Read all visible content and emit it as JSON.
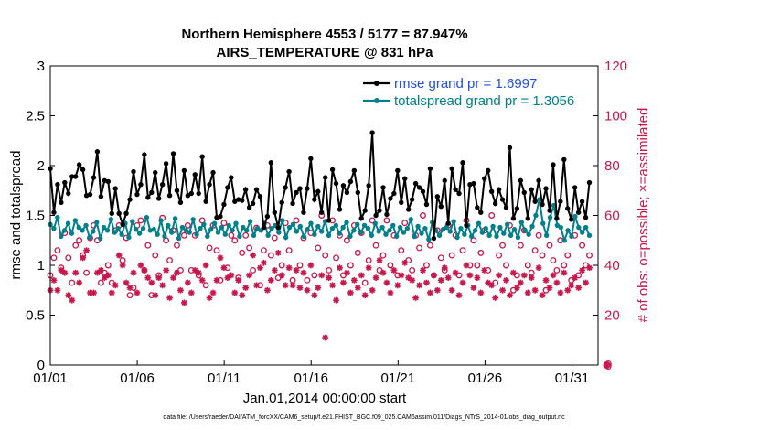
{
  "chart_data": {
    "type": "line",
    "title": "Northern Hemisphere 4553 / 5177 = 87.947%",
    "subtitle": "AIRS_TEMPERATURE @ 831 hPa",
    "xlabel": "Jan.01,2014 00:00:00 start",
    "ylabel": "rmse and totalspread",
    "y2label": "# of obs: o=possible; ×=assimilated",
    "footnote": "data file: /Users/raeder/DAI/ATM_forcXX/CAM6_setup/f.e21.FHIST_BGC.f09_025.CAM6assim.011/Diags_NTrS_2014-01/obs_diag_output.nc",
    "xlim": [
      0,
      31.5
    ],
    "ylim": [
      0,
      3
    ],
    "y2lim": [
      0,
      120
    ],
    "x_ticks": [
      0,
      5,
      10,
      15,
      20,
      25,
      30
    ],
    "x_tick_labels": [
      "01/01",
      "01/06",
      "01/11",
      "01/16",
      "01/21",
      "01/26",
      "01/31"
    ],
    "y_ticks": [
      0,
      0.5,
      1,
      1.5,
      2,
      2.5,
      3
    ],
    "y_tick_labels": [
      "0",
      "0.5",
      "1",
      "1.5",
      "2",
      "2.5",
      "3"
    ],
    "y2_ticks": [
      0,
      20,
      40,
      60,
      80,
      100,
      120
    ],
    "y2_tick_labels": [
      "0",
      "20",
      "40",
      "60",
      "80",
      "100",
      "120"
    ],
    "grid": false,
    "legend_position": "top-right",
    "colors": {
      "rmse": "#000000",
      "spread": "#00808a",
      "obs": "#c8174b"
    },
    "series": [
      {
        "name": "rmse grand pr = 1.6997",
        "axis": "left",
        "marker": "filled-circle",
        "values": [
          1.97,
          1.53,
          1.81,
          1.63,
          1.83,
          1.72,
          1.89,
          1.89,
          2.01,
          1.96,
          1.7,
          1.71,
          1.88,
          2.14,
          1.69,
          1.85,
          1.84,
          1.52,
          1.77,
          1.52,
          1.41,
          1.52,
          1.66,
          1.94,
          1.71,
          1.81,
          2.11,
          1.68,
          1.73,
          1.93,
          1.67,
          1.81,
          2.02,
          1.7,
          2.12,
          1.75,
          1.63,
          1.95,
          1.7,
          1.72,
          1.91,
          1.72,
          2.09,
          1.64,
          1.81,
          1.93,
          1.48,
          1.49,
          1.61,
          1.78,
          1.88,
          1.64,
          1.66,
          1.65,
          1.76,
          1.58,
          1.62,
          1.76,
          1.69,
          1.38,
          1.49,
          2.03,
          1.53,
          1.38,
          1.63,
          1.78,
          1.94,
          1.62,
          1.73,
          1.77,
          1.53,
          1.77,
          2.07,
          1.66,
          1.74,
          1.53,
          1.88,
          1.45,
          1.96,
          1.82,
          1.56,
          1.8,
          1.73,
          1.84,
          1.95,
          1.73,
          1.47,
          1.55,
          1.8,
          2.33,
          1.5,
          1.55,
          1.78,
          1.51,
          1.67,
          1.72,
          1.95,
          1.63,
          1.87,
          1.56,
          1.66,
          1.82,
          1.78,
          1.74,
          1.61,
          1.97,
          1.27,
          1.69,
          1.59,
          1.85,
          1.42,
          1.97,
          1.76,
          1.72,
          2.03,
          1.4,
          1.81,
          1.82,
          1.58,
          1.53,
          1.87,
          1.95,
          1.74,
          1.62,
          1.76,
          1.66,
          1.58,
          2.18,
          1.47,
          1.57,
          1.85,
          1.73,
          1.47,
          1.76,
          1.64,
          1.85,
          1.61,
          1.77,
          1.55,
          2.01,
          1.47,
          1.64,
          2.06,
          1.57,
          1.46,
          1.78,
          1.53,
          1.64,
          1.48,
          1.83
        ]
      },
      {
        "name": "totalspread grand pr = 1.3056",
        "axis": "left",
        "marker": "filled-circle",
        "values": [
          1.41,
          1.37,
          1.48,
          1.29,
          1.35,
          1.42,
          1.32,
          1.45,
          1.38,
          1.35,
          1.4,
          1.28,
          1.34,
          1.43,
          1.27,
          1.38,
          1.35,
          1.46,
          1.33,
          1.37,
          1.31,
          1.42,
          1.28,
          1.44,
          1.36,
          1.32,
          1.37,
          1.48,
          1.35,
          1.36,
          1.31,
          1.45,
          1.29,
          1.4,
          1.33,
          1.47,
          1.27,
          1.38,
          1.35,
          1.33,
          1.46,
          1.31,
          1.37,
          1.41,
          1.29,
          1.36,
          1.42,
          1.33,
          1.38,
          1.31,
          1.4,
          1.35,
          1.42,
          1.29,
          1.38,
          1.35,
          1.44,
          1.3,
          1.37,
          1.35,
          1.42,
          1.3,
          1.37,
          1.4,
          1.33,
          1.45,
          1.28,
          1.38,
          1.41,
          1.34,
          1.39,
          1.29,
          1.36,
          1.42,
          1.31,
          1.39,
          1.34,
          1.44,
          1.3,
          1.37,
          1.4,
          1.32,
          1.38,
          1.43,
          1.29,
          1.35,
          1.41,
          1.33,
          1.4,
          1.37,
          1.3,
          1.42,
          1.34,
          1.38,
          1.31,
          1.35,
          1.4,
          1.29,
          1.38,
          1.33,
          1.37,
          1.46,
          1.29,
          1.39,
          1.32,
          1.37,
          1.26,
          1.43,
          1.35,
          1.3,
          1.36,
          1.38,
          1.34,
          1.44,
          1.28,
          1.37,
          1.31,
          1.4,
          1.29,
          1.35,
          1.42,
          1.33,
          1.37,
          1.3,
          1.39,
          1.29,
          1.38,
          1.32,
          1.41,
          1.3,
          1.36,
          1.28,
          1.43,
          1.35,
          1.31,
          1.39,
          1.5,
          1.66,
          1.42,
          1.3,
          1.48,
          1.6,
          1.4,
          1.38,
          1.25,
          1.35,
          1.29,
          1.49,
          1.38,
          1.33,
          1.38,
          1.3
        ]
      },
      {
        "name": "obs possible",
        "axis": "right",
        "marker": "open-circle",
        "values": [
          36,
          43,
          46,
          39,
          53,
          43,
          33,
          48,
          50,
          44,
          37,
          51,
          56,
          50,
          33,
          37,
          40,
          33,
          54,
          56,
          42,
          51,
          28,
          31,
          56,
          58,
          38,
          48,
          28,
          44,
          36,
          59,
          50,
          42,
          54,
          48,
          38,
          52,
          56,
          38,
          52,
          36,
          58,
          32,
          47,
          56,
          46,
          34,
          57,
          39,
          52,
          50,
          35,
          45,
          52,
          47,
          38,
          55,
          32,
          46,
          56,
          44,
          51,
          35,
          40,
          57,
          46,
          34,
          58,
          40,
          51,
          34,
          53,
          36,
          47,
          60,
          44,
          38,
          58,
          43,
          52,
          36,
          50,
          40,
          56,
          45,
          53,
          33,
          42,
          58,
          48,
          38,
          44,
          58,
          40,
          52,
          36,
          46,
          57,
          42,
          38,
          52,
          47,
          60,
          40,
          48,
          36,
          54,
          43,
          38,
          56,
          44,
          52,
          36,
          46,
          58,
          40,
          50,
          40,
          45,
          54,
          38,
          60,
          33,
          44,
          48,
          40,
          56,
          30,
          36,
          48,
          54,
          40,
          37,
          46,
          52,
          44,
          30,
          48,
          42,
          38,
          50,
          40,
          44,
          34,
          52,
          36,
          48,
          40,
          44
        ]
      },
      {
        "name": "obs assimilated",
        "axis": "right",
        "marker": "asterisk",
        "values": [
          30,
          34,
          30,
          38,
          37,
          28,
          26,
          37,
          33,
          43,
          46,
          29,
          29,
          37,
          38,
          35,
          36,
          29,
          32,
          44,
          40,
          33,
          31,
          37,
          29,
          40,
          38,
          35,
          33,
          28,
          35,
          32,
          38,
          27,
          35,
          37,
          30,
          25,
          33,
          29,
          38,
          37,
          34,
          40,
          27,
          29,
          34,
          43,
          39,
          35,
          36,
          29,
          34,
          28,
          31,
          36,
          44,
          32,
          39,
          41,
          30,
          34,
          38,
          45,
          36,
          32,
          39,
          32,
          38,
          31,
          37,
          30,
          40,
          28,
          31,
          36,
          11,
          35,
          32,
          26,
          39,
          33,
          37,
          29,
          34,
          31,
          36,
          28,
          39,
          30,
          35,
          42,
          37,
          33,
          29,
          38,
          32,
          36,
          41,
          35,
          34,
          27,
          32,
          38,
          33,
          29,
          36,
          30,
          34,
          39,
          35,
          30,
          37,
          28,
          33,
          40,
          36,
          31,
          35,
          29,
          38,
          33,
          32,
          27,
          36,
          30,
          34,
          28,
          37,
          31,
          33,
          36,
          29,
          35,
          30,
          39,
          28,
          34,
          31,
          36,
          33,
          29,
          37,
          30,
          32,
          35,
          31,
          38,
          33,
          39
        ]
      }
    ],
    "extra_markers": [
      {
        "name": "right-axis-zero-open-circle",
        "x": 32,
        "y2": 0,
        "marker": "open-circle"
      },
      {
        "name": "right-axis-zero-asterisk",
        "x": 32,
        "y2": 0,
        "marker": "asterisk"
      }
    ]
  }
}
